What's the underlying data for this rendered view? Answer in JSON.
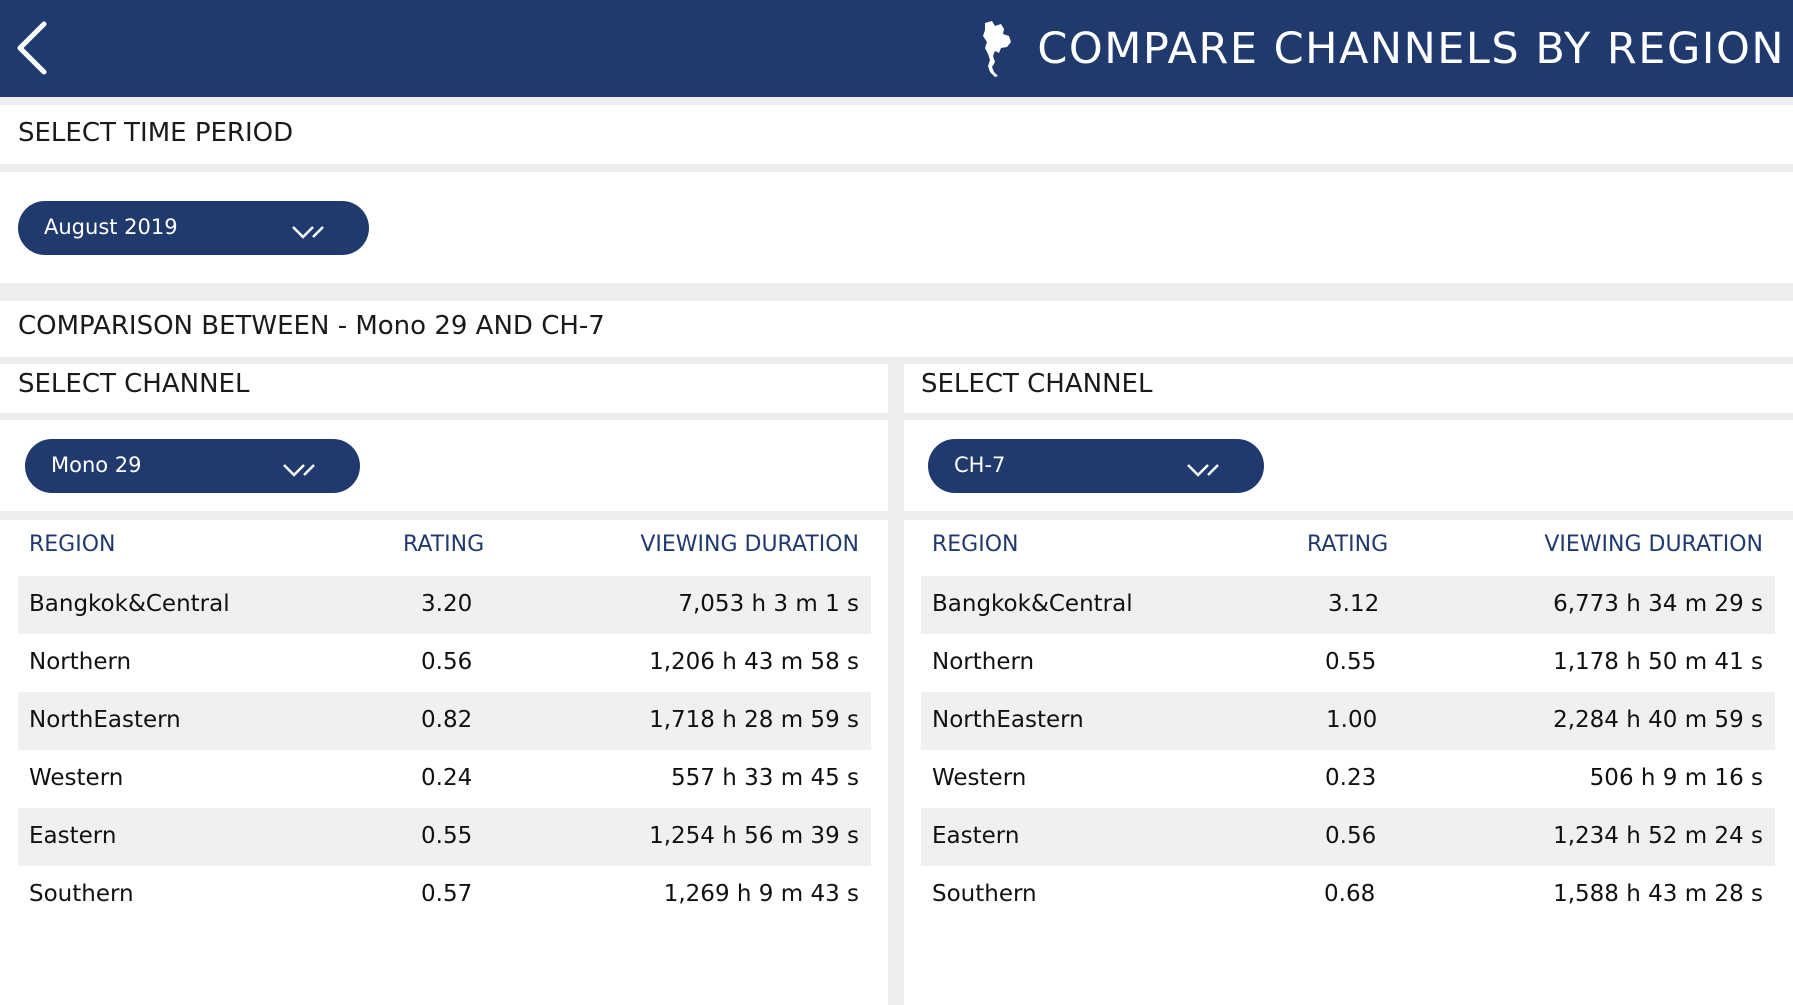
{
  "header": {
    "title": "COMPARE CHANNELS BY REGION",
    "back_icon": "chevron-left-icon",
    "map_icon": "thailand-map-icon"
  },
  "time_period": {
    "title": "SELECT TIME PERIOD",
    "selected": "August 2019"
  },
  "comparison": {
    "title": "COMPARISON BETWEEN - Mono 29 AND CH-7"
  },
  "columns": {
    "region": "REGION",
    "rating": "RATING",
    "duration": "VIEWING DURATION"
  },
  "channels": [
    {
      "select_label": "SELECT CHANNEL",
      "selected": "Mono 29",
      "rows": [
        {
          "region": "Bangkok&Central",
          "rating": "3.20",
          "duration": "7,053 h 3 m 1 s"
        },
        {
          "region": "Northern",
          "rating": "0.56",
          "duration": "1,206 h 43 m 58 s"
        },
        {
          "region": "NorthEastern",
          "rating": "0.82",
          "duration": "1,718 h 28 m 59 s"
        },
        {
          "region": "Western",
          "rating": "0.24",
          "duration": "557 h 33 m 45 s"
        },
        {
          "region": "Eastern",
          "rating": "0.55",
          "duration": "1,254 h 56 m 39 s"
        },
        {
          "region": "Southern",
          "rating": "0.57",
          "duration": "1,269 h 9 m 43 s"
        }
      ]
    },
    {
      "select_label": "SELECT CHANNEL",
      "selected": "CH-7",
      "rows": [
        {
          "region": "Bangkok&Central",
          "rating": "3.12",
          "duration": "6,773 h 34 m 29 s"
        },
        {
          "region": "Northern",
          "rating": "0.55",
          "duration": "1,178 h 50 m 41 s"
        },
        {
          "region": "NorthEastern",
          "rating": "1.00",
          "duration": "2,284 h 40 m 59 s"
        },
        {
          "region": "Western",
          "rating": "0.23",
          "duration": "506 h 9 m 16 s"
        },
        {
          "region": "Eastern",
          "rating": "0.56",
          "duration": "1,234 h 52 m 24 s"
        },
        {
          "region": "Southern",
          "rating": "0.68",
          "duration": "1,588 h 43 m 28 s"
        }
      ]
    }
  ],
  "colors": {
    "primary": "#213a6e",
    "band": "#eeeeee",
    "row_shade": "#f0f0f0"
  }
}
